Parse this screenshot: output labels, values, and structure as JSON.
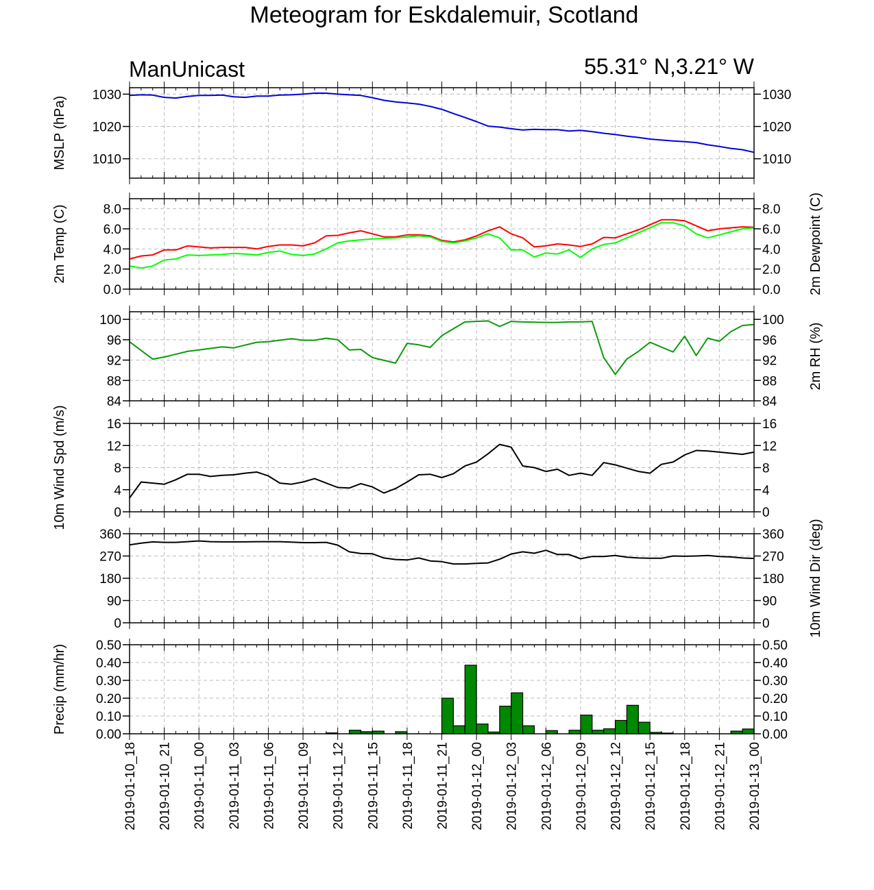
{
  "title": "Meteogram for Eskdalemuir, Scotland",
  "subtitle_left": "ManUnicast",
  "subtitle_right": "55.31° N,3.21° W",
  "chart_data": [
    {
      "type": "line",
      "ylabel": "MSLP (hPa)",
      "ylim": [
        1004,
        1032
      ],
      "yticks": [
        1010,
        1020,
        1030
      ],
      "tick_labels_left": [
        "1010",
        "1020",
        "1030"
      ],
      "tick_labels_right": [
        "1010",
        "1020",
        "1030"
      ],
      "grid": true,
      "series": [
        {
          "color": "#0000dd",
          "x": [
            0,
            1,
            2,
            3,
            4,
            5,
            6,
            7,
            8,
            9,
            10,
            11,
            12,
            13,
            14,
            15,
            16,
            17,
            18,
            19,
            20,
            21,
            22,
            23,
            24,
            25,
            26,
            27,
            28,
            29,
            30,
            31,
            32,
            33,
            34,
            35,
            36,
            37,
            38,
            39,
            40,
            41,
            42,
            43,
            44,
            45,
            46,
            47,
            48,
            49,
            50,
            51,
            52,
            53,
            54
          ],
          "y": [
            1029.6,
            1029.8,
            1029.7,
            1029.0,
            1028.8,
            1029.3,
            1029.6,
            1029.6,
            1029.7,
            1029.2,
            1029.0,
            1029.4,
            1029.4,
            1029.7,
            1029.8,
            1030.0,
            1030.3,
            1030.3,
            1030.0,
            1029.8,
            1029.6,
            1028.9,
            1028.1,
            1027.6,
            1027.3,
            1026.9,
            1026.2,
            1025.3,
            1024.0,
            1022.8,
            1021.5,
            1020.1,
            1019.8,
            1019.3,
            1018.9,
            1019.1,
            1019.0,
            1019.0,
            1018.6,
            1018.8,
            1018.4,
            1017.9,
            1017.5,
            1017.0,
            1016.6,
            1016.1,
            1015.8,
            1015.5,
            1015.3,
            1015.0,
            1014.3,
            1013.8,
            1013.2,
            1012.8,
            1012.0
          ]
        }
      ]
    },
    {
      "type": "line",
      "ylabel": "2m Temp (C)",
      "ylabel_right": "2m Dewpoint (C)",
      "ylim": [
        0,
        9
      ],
      "yticks": [
        0,
        2,
        4,
        6,
        8
      ],
      "tick_labels_left": [
        "0.0",
        "2.0",
        "4.0",
        "6.0",
        "8.0"
      ],
      "tick_labels_right": [
        "0.0",
        "2.0",
        "4.0",
        "6.0",
        "8.0"
      ],
      "grid": true,
      "series": [
        {
          "color": "#ff0000",
          "x": [
            0,
            1,
            2,
            3,
            4,
            5,
            6,
            7,
            8,
            9,
            10,
            11,
            12,
            13,
            14,
            15,
            16,
            17,
            18,
            19,
            20,
            21,
            22,
            23,
            24,
            25,
            26,
            27,
            28,
            29,
            30,
            31,
            32,
            33,
            34,
            35,
            36,
            37,
            38,
            39,
            40,
            41,
            42,
            43,
            44,
            45,
            46,
            47,
            48,
            49,
            50,
            51,
            52,
            53,
            54
          ],
          "y": [
            3.0,
            3.3,
            3.4,
            3.9,
            3.9,
            4.3,
            4.2,
            4.1,
            4.15,
            4.15,
            4.15,
            4.0,
            4.25,
            4.4,
            4.4,
            4.3,
            4.6,
            5.3,
            5.35,
            5.6,
            5.8,
            5.5,
            5.2,
            5.2,
            5.4,
            5.4,
            5.3,
            4.85,
            4.7,
            4.9,
            5.3,
            5.8,
            6.2,
            5.5,
            5.1,
            4.2,
            4.3,
            4.5,
            4.4,
            4.25,
            4.5,
            5.15,
            5.1,
            5.5,
            5.9,
            6.4,
            6.9,
            6.9,
            6.8,
            6.3,
            5.8,
            6.0,
            6.1,
            6.2,
            6.15
          ]
        },
        {
          "color": "#00ff00",
          "x": [
            0,
            1,
            2,
            3,
            4,
            5,
            6,
            7,
            8,
            9,
            10,
            11,
            12,
            13,
            14,
            15,
            16,
            17,
            18,
            19,
            20,
            21,
            22,
            23,
            24,
            25,
            26,
            27,
            28,
            29,
            30,
            31,
            32,
            33,
            34,
            35,
            36,
            37,
            38,
            39,
            40,
            41,
            42,
            43,
            44,
            45,
            46,
            47,
            48,
            49,
            50,
            51,
            52,
            53,
            54
          ],
          "y": [
            2.3,
            2.1,
            2.3,
            2.9,
            3.0,
            3.4,
            3.35,
            3.4,
            3.45,
            3.55,
            3.5,
            3.4,
            3.65,
            3.8,
            3.45,
            3.35,
            3.5,
            4.0,
            4.6,
            4.8,
            4.9,
            5.0,
            5.05,
            5.1,
            5.2,
            5.3,
            5.2,
            4.75,
            4.6,
            4.8,
            5.1,
            5.5,
            5.1,
            3.9,
            3.9,
            3.2,
            3.6,
            3.5,
            3.9,
            3.15,
            4.0,
            4.45,
            4.6,
            5.1,
            5.6,
            6.1,
            6.6,
            6.6,
            6.3,
            5.5,
            5.1,
            5.4,
            5.7,
            6.0,
            6.1
          ]
        }
      ]
    },
    {
      "type": "line",
      "ylabel_right": "2m RH (%)",
      "ylim": [
        84,
        101.5
      ],
      "yticks": [
        84,
        88,
        92,
        96,
        100
      ],
      "tick_labels_left": [
        "84",
        "88",
        "92",
        "96",
        "100"
      ],
      "tick_labels_right": [
        "84",
        "88",
        "92",
        "96",
        "100"
      ],
      "grid": true,
      "series": [
        {
          "color": "#0a9a0a",
          "x": [
            0,
            2,
            3,
            5,
            6,
            8,
            9,
            11,
            12,
            14,
            15,
            16,
            17,
            18,
            19,
            20,
            21,
            23,
            24,
            25,
            26,
            27,
            29,
            31,
            32,
            33,
            34,
            36,
            37,
            38,
            39,
            40,
            41,
            42,
            43,
            44,
            45,
            47,
            48,
            49,
            50,
            51,
            52,
            53,
            54
          ],
          "y": [
            95.6,
            92.2,
            92.6,
            93.7,
            94.0,
            94.6,
            94.4,
            95.5,
            95.6,
            96.2,
            95.9,
            95.9,
            96.3,
            96.0,
            94.0,
            94.1,
            92.5,
            91.4,
            95.3,
            95.0,
            94.5,
            96.8,
            99.5,
            99.7,
            98.6,
            99.6,
            99.5,
            99.4,
            99.4,
            99.5,
            99.5,
            99.6,
            92.5,
            89.2,
            92.2,
            93.7,
            95.5,
            93.6,
            96.7,
            92.9,
            96.3,
            95.7,
            97.6,
            98.8,
            99.0
          ]
        }
      ]
    },
    {
      "type": "line",
      "ylabel": "10m Wind Spd (m/s)",
      "ylim": [
        0,
        16
      ],
      "yticks": [
        0,
        4,
        8,
        12,
        16
      ],
      "tick_labels_left": [
        "0",
        "4",
        "8",
        "12",
        "16"
      ],
      "tick_labels_right": [
        "0",
        "4",
        "8",
        "12",
        "16"
      ],
      "grid": true,
      "series": [
        {
          "color": "#000000",
          "x": [
            0,
            1,
            3,
            4,
            5,
            6,
            7,
            8,
            9,
            10,
            11,
            12,
            13,
            14,
            15,
            16,
            17,
            18,
            19,
            20,
            21,
            22,
            23,
            24,
            25,
            26,
            27,
            28,
            29,
            30,
            31,
            32,
            33,
            34,
            35,
            36,
            37,
            38,
            39,
            40,
            41,
            42,
            43,
            44,
            45,
            46,
            47,
            48,
            49,
            50,
            51,
            52,
            53,
            54
          ],
          "y": [
            2.5,
            5.4,
            5.0,
            5.8,
            6.8,
            6.8,
            6.4,
            6.6,
            6.7,
            7.0,
            7.2,
            6.5,
            5.2,
            5.0,
            5.4,
            6.0,
            5.2,
            4.4,
            4.3,
            5.1,
            4.5,
            3.4,
            4.2,
            5.4,
            6.7,
            6.8,
            6.2,
            6.9,
            8.3,
            9.0,
            10.5,
            12.2,
            11.7,
            8.3,
            8.0,
            7.3,
            7.7,
            6.6,
            7.0,
            6.6,
            8.9,
            8.5,
            7.9,
            7.3,
            7.0,
            8.6,
            9.0,
            10.3,
            11.1,
            11.0,
            10.8,
            10.6,
            10.4,
            10.8
          ]
        }
      ]
    },
    {
      "type": "line",
      "ylabel_right": "10m Wind Dir (deg)",
      "ylim": [
        0,
        360
      ],
      "yticks": [
        0,
        90,
        180,
        270,
        360
      ],
      "tick_labels_left": [
        "0",
        "90",
        "180",
        "270",
        "360"
      ],
      "tick_labels_right": [
        "0",
        "90",
        "180",
        "270",
        "360"
      ],
      "grid": true,
      "series": [
        {
          "color": "#000000",
          "x": [
            0,
            1,
            2,
            3,
            4,
            5,
            6,
            7,
            8,
            9,
            10,
            11,
            12,
            13,
            14,
            15,
            16,
            17,
            18,
            19,
            20,
            21,
            22,
            23,
            24,
            25,
            26,
            27,
            28,
            29,
            30,
            31,
            32,
            33,
            34,
            35,
            36,
            37,
            38,
            39,
            40,
            41,
            42,
            43,
            44,
            45,
            46,
            47,
            48,
            49,
            50,
            51,
            52,
            53,
            54
          ],
          "y": [
            315,
            322,
            327,
            325,
            325,
            328,
            331,
            328,
            327,
            327,
            327,
            328,
            328,
            328,
            326,
            324,
            324,
            325,
            314,
            287,
            280,
            279,
            262,
            256,
            254,
            262,
            250,
            247,
            238,
            238,
            240,
            242,
            257,
            278,
            287,
            281,
            293,
            276,
            276,
            259,
            268,
            268,
            272,
            265,
            262,
            261,
            261,
            270,
            269,
            270,
            272,
            268,
            266,
            262,
            260
          ]
        }
      ]
    },
    {
      "type": "bar",
      "ylabel": "Precip (mm/hr)",
      "ylim": [
        0,
        0.5
      ],
      "yticks": [
        0,
        0.1,
        0.2,
        0.3,
        0.4,
        0.5
      ],
      "tick_labels_left": [
        "0.00",
        "0.10",
        "0.20",
        "0.30",
        "0.40",
        "0.50"
      ],
      "tick_labels_right": [
        "0.00",
        "0.10",
        "0.20",
        "0.30",
        "0.40",
        "0.50"
      ],
      "grid": true,
      "color": "#008800",
      "x": [
        18,
        20,
        21,
        22,
        24,
        28,
        29,
        30,
        31,
        32,
        33,
        34,
        35,
        37,
        39,
        40,
        41,
        42,
        43,
        44,
        45,
        46,
        47,
        53,
        54
      ],
      "values": [
        0.005,
        0.02,
        0.012,
        0.015,
        0.012,
        0.2,
        0.045,
        0.385,
        0.055,
        0.01,
        0.155,
        0.23,
        0.045,
        0.018,
        0.02,
        0.105,
        0.02,
        0.028,
        0.075,
        0.16,
        0.065,
        0.008,
        0.004,
        0.015,
        0.027
      ]
    }
  ],
  "x_axis": {
    "tick_hours": [
      0,
      3,
      6,
      9,
      12,
      15,
      18,
      21,
      24,
      27,
      30,
      33,
      36,
      39,
      42,
      45,
      48,
      51,
      54
    ],
    "tick_labels": [
      "2019-01-10_18",
      "2019-01-10_21",
      "2019-01-11_00",
      "2019-01-11_03",
      "2019-01-11_06",
      "2019-01-11_09",
      "2019-01-11_12",
      "2019-01-11_15",
      "2019-01-11_18",
      "2019-01-11_21",
      "2019-01-12_00",
      "2019-01-12_03",
      "2019-01-12_06",
      "2019-01-12_09",
      "2019-01-12_12",
      "2019-01-12_15",
      "2019-01-12_18",
      "2019-01-12_21",
      "2019-01-13_00"
    ]
  }
}
